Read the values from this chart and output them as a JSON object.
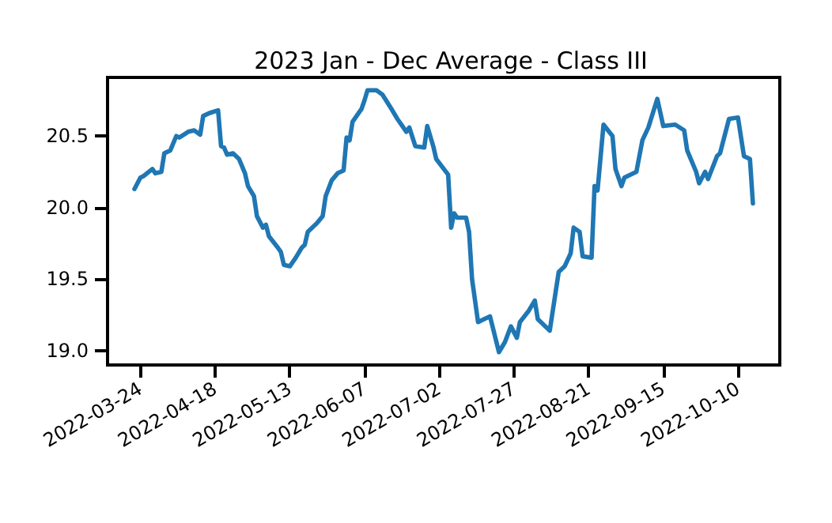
{
  "chart_data": {
    "type": "line",
    "title": "2023 Jan - Dec Average - Class III",
    "grid": false,
    "marker": "none",
    "line_style": "solid",
    "xlim": [
      "2022-03-13",
      "2022-10-24"
    ],
    "xticks": [
      "2022-03-24",
      "2022-04-18",
      "2022-05-13",
      "2022-06-07",
      "2022-07-02",
      "2022-07-27",
      "2022-08-21",
      "2022-09-15",
      "2022-10-10"
    ],
    "ylim": [
      18.9,
      20.91
    ],
    "yticks": [
      {
        "value": 19,
        "label": "19.0"
      },
      {
        "value": 19.5,
        "label": "19.5"
      },
      {
        "value": 20,
        "label": "20.0"
      },
      {
        "value": 20.5,
        "label": "20.5"
      }
    ],
    "x": [
      "2022-03-22",
      "2022-03-24",
      "2022-03-25",
      "2022-03-28",
      "2022-03-29",
      "2022-03-31",
      "2022-04-01",
      "2022-04-03",
      "2022-04-05",
      "2022-04-06",
      "2022-04-09",
      "2022-04-11",
      "2022-04-13",
      "2022-04-14",
      "2022-04-16",
      "2022-04-19",
      "2022-04-20",
      "2022-04-21",
      "2022-04-22",
      "2022-04-24",
      "2022-04-26",
      "2022-04-28",
      "2022-04-29",
      "2022-05-01",
      "2022-05-02",
      "2022-05-04",
      "2022-05-05",
      "2022-05-06",
      "2022-05-09",
      "2022-05-10",
      "2022-05-11",
      "2022-05-13",
      "2022-05-15",
      "2022-05-17",
      "2022-05-18",
      "2022-05-19",
      "2022-05-22",
      "2022-05-24",
      "2022-05-25",
      "2022-05-27",
      "2022-05-29",
      "2022-05-31",
      "2022-06-01",
      "2022-06-02",
      "2022-06-03",
      "2022-06-06",
      "2022-06-07",
      "2022-06-08",
      "2022-06-11",
      "2022-06-13",
      "2022-06-16",
      "2022-06-18",
      "2022-06-21",
      "2022-06-22",
      "2022-06-24",
      "2022-06-27",
      "2022-06-28",
      "2022-06-30",
      "2022-07-01",
      "2022-07-05",
      "2022-07-06",
      "2022-07-07",
      "2022-07-08",
      "2022-07-11",
      "2022-07-12",
      "2022-07-13",
      "2022-07-15",
      "2022-07-17",
      "2022-07-19",
      "2022-07-22",
      "2022-07-24",
      "2022-07-26",
      "2022-07-28",
      "2022-07-29",
      "2022-08-01",
      "2022-08-03",
      "2022-08-04",
      "2022-08-08",
      "2022-08-11",
      "2022-08-13",
      "2022-08-15",
      "2022-08-16",
      "2022-08-18",
      "2022-08-19",
      "2022-08-22",
      "2022-08-23",
      "2022-08-24",
      "2022-08-26",
      "2022-08-29",
      "2022-08-30",
      "2022-09-01",
      "2022-09-02",
      "2022-09-06",
      "2022-09-08",
      "2022-09-10",
      "2022-09-13",
      "2022-09-15",
      "2022-09-19",
      "2022-09-22",
      "2022-09-23",
      "2022-09-26",
      "2022-09-27",
      "2022-09-29",
      "2022-09-30",
      "2022-10-03",
      "2022-10-04",
      "2022-10-07",
      "2022-10-10",
      "2022-10-12",
      "2022-10-14",
      "2022-10-15"
    ],
    "series": [
      {
        "color": "#1f77b4",
        "values": [
          20.13,
          20.21,
          20.22,
          20.27,
          20.24,
          20.25,
          20.38,
          20.4,
          20.5,
          20.49,
          20.53,
          20.54,
          20.51,
          20.64,
          20.66,
          20.68,
          20.43,
          20.42,
          20.37,
          20.38,
          20.34,
          20.24,
          20.15,
          20.08,
          19.94,
          19.86,
          19.88,
          19.8,
          19.72,
          19.69,
          19.6,
          19.59,
          19.65,
          19.72,
          19.74,
          19.83,
          19.89,
          19.94,
          20.08,
          20.19,
          20.24,
          20.26,
          20.49,
          20.47,
          20.6,
          20.69,
          20.75,
          20.82,
          20.82,
          20.79,
          20.69,
          20.62,
          20.53,
          20.56,
          20.43,
          20.42,
          20.57,
          20.43,
          20.34,
          20.23,
          19.86,
          19.96,
          19.93,
          19.93,
          19.83,
          19.5,
          19.2,
          19.22,
          19.24,
          18.99,
          19.06,
          19.17,
          19.09,
          19.2,
          19.28,
          19.35,
          19.22,
          19.14,
          19.55,
          19.59,
          19.68,
          19.86,
          19.83,
          19.66,
          19.65,
          20.15,
          20.12,
          20.58,
          20.5,
          20.27,
          20.15,
          20.21,
          20.25,
          20.47,
          20.56,
          20.76,
          20.57,
          20.58,
          20.54,
          20.4,
          20.25,
          20.17,
          20.25,
          20.2,
          20.36,
          20.38,
          20.62,
          20.63,
          20.36,
          20.34,
          20.03
        ]
      }
    ]
  }
}
